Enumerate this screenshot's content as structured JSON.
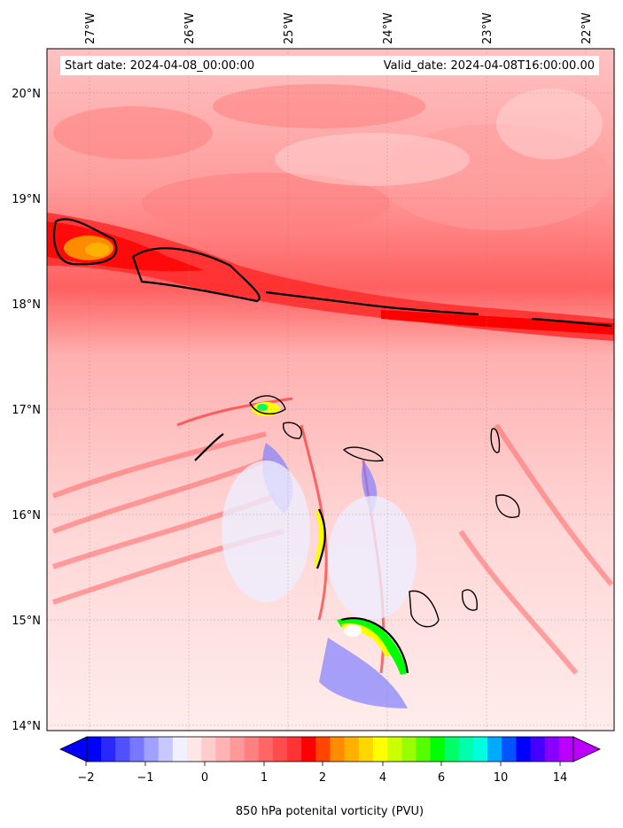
{
  "header": {
    "start_date": "Start date: 2024-04-08_00:00:00",
    "valid_date": "Valid_date: 2024-04-08T16:00:00.00"
  },
  "map": {
    "lon_labels": [
      "27°W",
      "26°W",
      "25°W",
      "24°W",
      "23°W",
      "22°W"
    ],
    "lat_labels": [
      "20°N",
      "19°N",
      "18°N",
      "17°N",
      "16°N",
      "15°N",
      "14°N"
    ],
    "background_color": "#ffb3b3",
    "band_color": "#ff2020"
  },
  "colorbar": {
    "label": "850 hPa potenital vorticity (PVU)",
    "tick_labels": [
      "−2",
      "−1",
      "0",
      "1",
      "2",
      "4",
      "6",
      "10",
      "14"
    ],
    "colors": [
      "#0000ff",
      "#2828ff",
      "#5050ff",
      "#7878ff",
      "#a0a0ff",
      "#c8c8ff",
      "#f0f0ff",
      "#ffe6e6",
      "#ffcccc",
      "#ffb3b3",
      "#ff9999",
      "#ff8080",
      "#ff6666",
      "#ff4d4d",
      "#ff3333",
      "#ff0000",
      "#ff4500",
      "#ff8c00",
      "#ffb000",
      "#ffd700",
      "#ffff00",
      "#ccff00",
      "#99ff00",
      "#55ff00",
      "#00ff00",
      "#00ff66",
      "#00ffaa",
      "#00ffdd",
      "#00aaff",
      "#0055ff",
      "#0000ff",
      "#4400ff",
      "#8800ff",
      "#bb00ff"
    ]
  }
}
